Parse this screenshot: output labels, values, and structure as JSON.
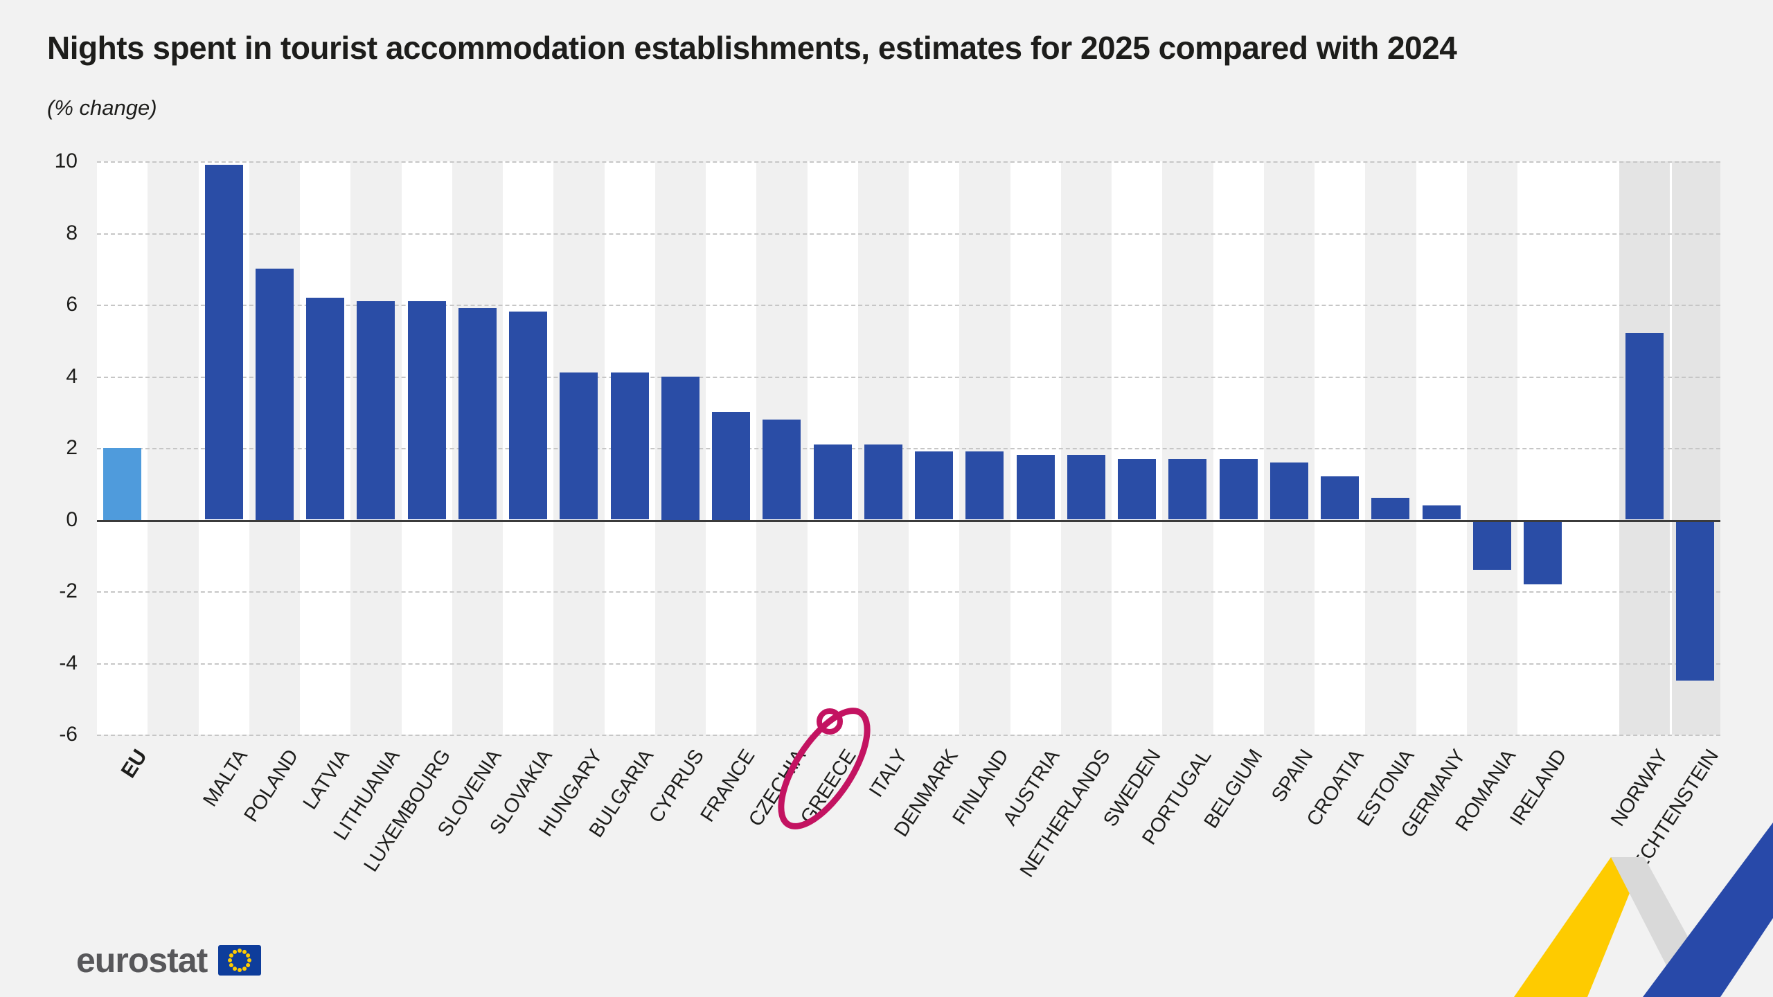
{
  "footer": {
    "logo_text": "eurostat"
  },
  "chart_data": {
    "type": "bar",
    "title": "Nights spent in tourist accommodation establishments, estimates for 2025 compared with 2024",
    "subtitle": "(% change)",
    "unit": "% change",
    "ylim": [
      -6,
      10
    ],
    "yticks": [
      10,
      8,
      6,
      4,
      2,
      0,
      -2,
      -4,
      -6
    ],
    "grid": "dashed horizontal, solid zero line",
    "legend": "none",
    "colors": {
      "eu_bar": "#4f9bdc",
      "bar": "#2a4da6",
      "band_white": "#ffffff",
      "band_shade": "#f0f0f0",
      "band_efta": "#e4e4e4",
      "gridline": "#c6c6c6",
      "zero_line": "#3b3b3b",
      "annotation": "#c31361",
      "ribbon_yellow": "#fecb00",
      "ribbon_gray": "#d9d9d9",
      "ribbon_blue": "#2849a9",
      "flag_blue": "#0e3d9b",
      "flag_stars": "#ffcc00"
    },
    "annotation": {
      "type": "hand-drawn circle",
      "target": "GREECE",
      "color": "#c31361"
    },
    "slots": [
      {
        "label": "EU",
        "value": 2.0,
        "group": "eu",
        "band": "white"
      },
      {
        "band": "shade"
      },
      {
        "label": "MALTA",
        "value": 9.9,
        "group": "member",
        "band": "white"
      },
      {
        "label": "POLAND",
        "value": 7.0,
        "group": "member",
        "band": "shade"
      },
      {
        "label": "LATVIA",
        "value": 6.2,
        "group": "member",
        "band": "white"
      },
      {
        "label": "LITHUANIA",
        "value": 6.1,
        "group": "member",
        "band": "shade"
      },
      {
        "label": "LUXEMBOURG",
        "value": 6.1,
        "group": "member",
        "band": "white"
      },
      {
        "label": "SLOVENIA",
        "value": 5.9,
        "group": "member",
        "band": "shade"
      },
      {
        "label": "SLOVAKIA",
        "value": 5.8,
        "group": "member",
        "band": "white"
      },
      {
        "label": "HUNGARY",
        "value": 4.1,
        "group": "member",
        "band": "shade"
      },
      {
        "label": "BULGARIA",
        "value": 4.1,
        "group": "member",
        "band": "white"
      },
      {
        "label": "CYPRUS",
        "value": 4.0,
        "group": "member",
        "band": "shade"
      },
      {
        "label": "FRANCE",
        "value": 3.0,
        "group": "member",
        "band": "white"
      },
      {
        "label": "CZECHIA",
        "value": 2.8,
        "group": "member",
        "band": "shade"
      },
      {
        "label": "GREECE",
        "value": 2.1,
        "group": "member",
        "band": "white"
      },
      {
        "label": "ITALY",
        "value": 2.1,
        "group": "member",
        "band": "shade"
      },
      {
        "label": "DENMARK",
        "value": 1.9,
        "group": "member",
        "band": "white"
      },
      {
        "label": "FINLAND",
        "value": 1.9,
        "group": "member",
        "band": "shade"
      },
      {
        "label": "AUSTRIA",
        "value": 1.8,
        "group": "member",
        "band": "white"
      },
      {
        "label": "NETHERLANDS",
        "value": 1.8,
        "group": "member",
        "band": "shade"
      },
      {
        "label": "SWEDEN",
        "value": 1.7,
        "group": "member",
        "band": "white"
      },
      {
        "label": "PORTUGAL",
        "value": 1.7,
        "group": "member",
        "band": "shade"
      },
      {
        "label": "BELGIUM",
        "value": 1.7,
        "group": "member",
        "band": "white"
      },
      {
        "label": "SPAIN",
        "value": 1.6,
        "group": "member",
        "band": "shade"
      },
      {
        "label": "CROATIA",
        "value": 1.2,
        "group": "member",
        "band": "white"
      },
      {
        "label": "ESTONIA",
        "value": 0.6,
        "group": "member",
        "band": "shade"
      },
      {
        "label": "GERMANY",
        "value": 0.4,
        "group": "member",
        "band": "white"
      },
      {
        "label": "ROMANIA",
        "value": -1.4,
        "group": "member",
        "band": "shade"
      },
      {
        "label": "IRELAND",
        "value": -1.8,
        "group": "member",
        "band": "white"
      },
      {
        "band": "white"
      },
      {
        "label": "NORWAY",
        "value": 5.2,
        "group": "efta",
        "band": "efta"
      },
      {
        "label": "LIECHTENSTEIN",
        "value": -4.5,
        "group": "efta",
        "band": "efta"
      }
    ]
  }
}
